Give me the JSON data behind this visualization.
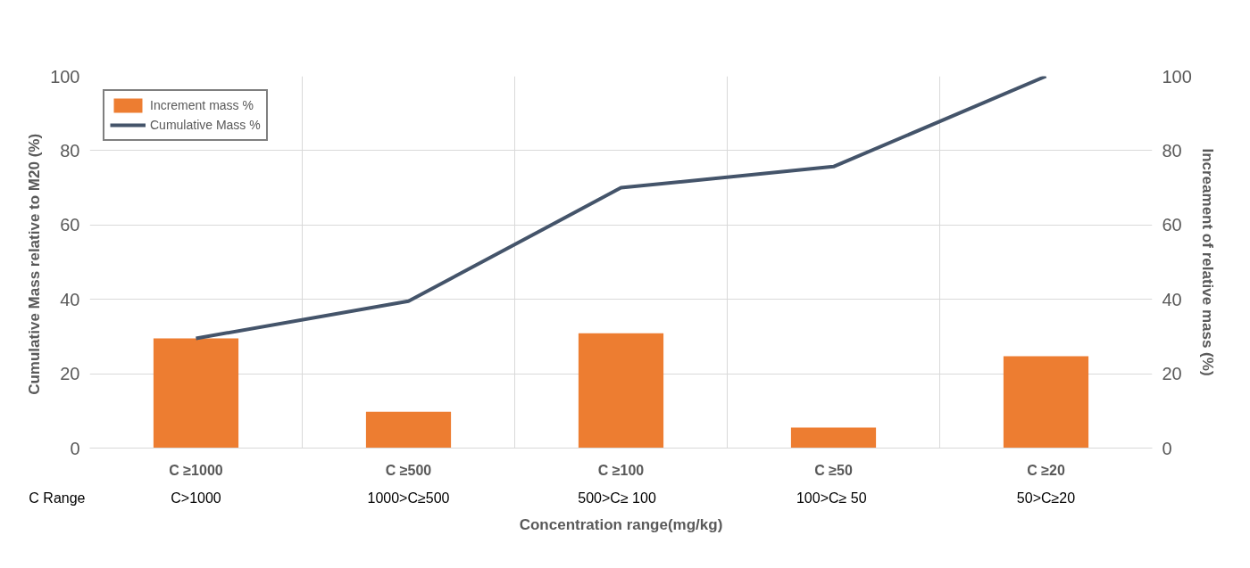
{
  "chart_data": {
    "type": "bar",
    "xlabel": "Concentration range(mg/kg)",
    "ylabel": "Cumulative Mass relative to M20  (%)",
    "y2label": "Increament of relative mass (%)",
    "categories": [
      "C ≥1000",
      "C ≥500",
      "C ≥100",
      "C ≥50",
      "C ≥20"
    ],
    "series": [
      {
        "name": "Increment mass %",
        "color": "#ed7d31",
        "values": [
          29.5,
          9.8,
          30.9,
          5.5,
          24.7
        ]
      },
      {
        "name": "Cumulative Mass %",
        "type": "line",
        "color": "#44546a",
        "values": [
          29.5,
          39.5,
          70,
          75.7,
          100
        ]
      }
    ],
    "ylim": [
      0,
      100
    ],
    "yticks": [
      0,
      20,
      40,
      60,
      80,
      100
    ],
    "y2lim": [
      0,
      100
    ],
    "y2ticks": [
      0,
      20,
      40,
      60,
      80,
      100
    ],
    "annotations": [
      "C Range",
      "C>1000",
      "1000>C≥500",
      "500>C≥   100",
      "100>C≥  50",
      "50>C≥20"
    ],
    "grid": true,
    "legend": "top left",
    "marker": "none",
    "line_style": "solid"
  }
}
